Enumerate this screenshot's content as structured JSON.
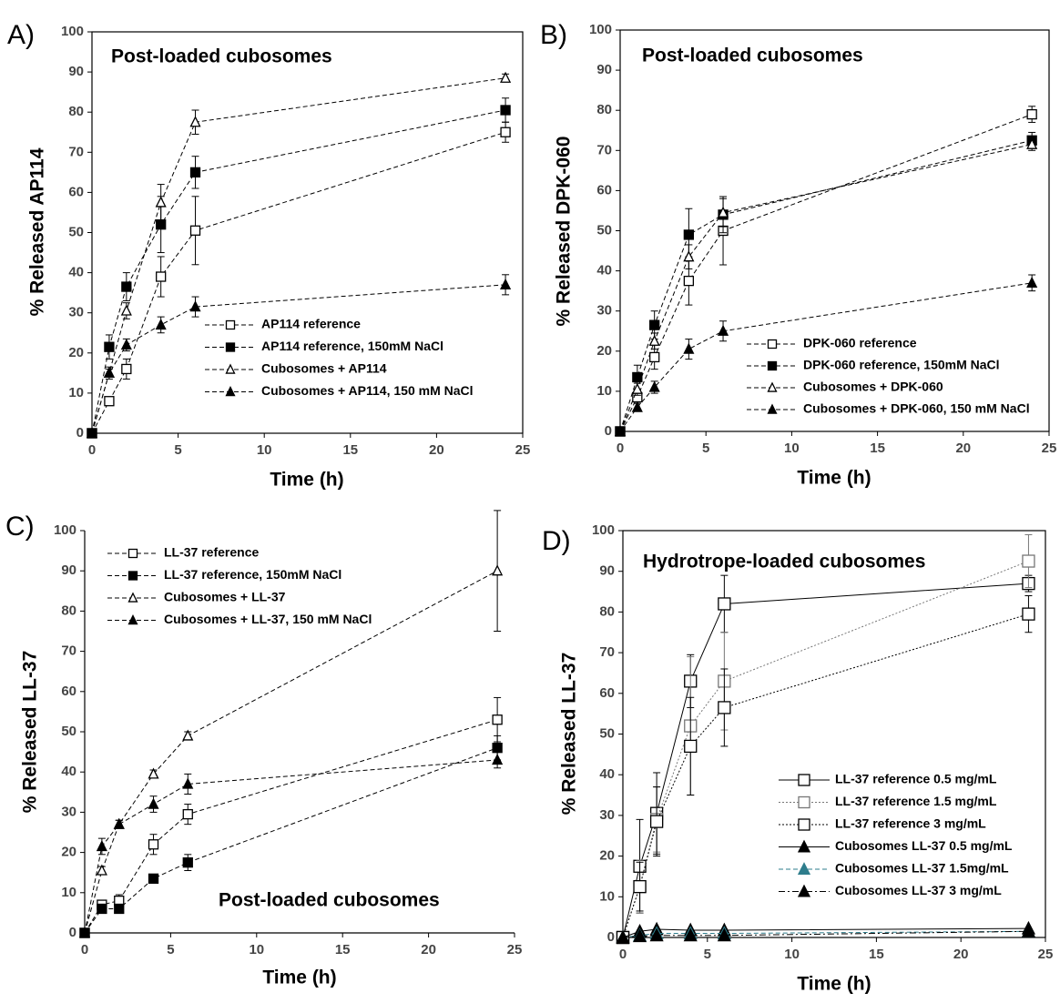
{
  "chart_data": [
    {
      "type": "line",
      "panel_label": "A)",
      "title": "Post-loaded cubosomes",
      "x_label": "Time (h)",
      "y_label": "% Released AP114",
      "xlim": [
        0,
        25
      ],
      "xticks": [
        0,
        5,
        10,
        15,
        20,
        25
      ],
      "ylim": [
        0,
        100
      ],
      "yticks": [
        0,
        10,
        20,
        30,
        40,
        50,
        60,
        70,
        80,
        90,
        100
      ],
      "grid": false,
      "x": [
        0,
        1,
        2,
        4,
        6,
        24
      ],
      "series": [
        {
          "name": "AP114 reference",
          "color": "#000000",
          "marker": "square-open",
          "line_style": "dashed",
          "values": [
            0,
            8,
            16,
            39,
            50.5,
            75
          ],
          "errors": [
            0,
            1,
            2.5,
            5,
            8.5,
            2.5
          ]
        },
        {
          "name": "AP114 reference, 150mM NaCl",
          "color": "#000000",
          "marker": "square-filled",
          "line_style": "dashed",
          "values": [
            0,
            21.5,
            36.5,
            52,
            65,
            80.5
          ],
          "errors": [
            0,
            3,
            3.5,
            7,
            4,
            3
          ]
        },
        {
          "name": "Cubosomes + AP114",
          "color": "#000000",
          "marker": "triangle-open",
          "line_style": "dashed",
          "values": [
            0,
            15,
            30.5,
            57.5,
            77.5,
            88.5
          ],
          "errors": [
            0,
            1.5,
            2,
            4.5,
            3,
            1
          ]
        },
        {
          "name": "Cubosomes + AP114, 150 mM NaCl",
          "color": "#000000",
          "marker": "triangle-filled",
          "line_style": "dashed",
          "values": [
            0,
            15,
            22,
            27,
            31.5,
            37
          ],
          "errors": [
            0,
            1,
            1.5,
            2,
            2.5,
            2.5
          ]
        }
      ]
    },
    {
      "type": "line",
      "panel_label": "B)",
      "title": "Post-loaded cubosomes",
      "x_label": "Time (h)",
      "y_label": "% Released DPK-060",
      "xlim": [
        0,
        25
      ],
      "xticks": [
        0,
        5,
        10,
        15,
        20,
        25
      ],
      "ylim": [
        0,
        100
      ],
      "yticks": [
        0,
        10,
        20,
        30,
        40,
        50,
        60,
        70,
        80,
        90,
        100
      ],
      "grid": false,
      "x": [
        0,
        1,
        2,
        4,
        6,
        24
      ],
      "series": [
        {
          "name": "DPK-060 reference",
          "color": "#000000",
          "marker": "square-open",
          "line_style": "dashed",
          "values": [
            0,
            8.5,
            18.5,
            37.5,
            50,
            79
          ],
          "errors": [
            0,
            1.5,
            3,
            6,
            8.5,
            2
          ]
        },
        {
          "name": "DPK-060 reference, 150mM NaCl",
          "color": "#000000",
          "marker": "square-filled",
          "line_style": "dashed",
          "values": [
            0,
            13.5,
            26.5,
            49,
            54,
            72.5
          ],
          "errors": [
            0,
            3,
            3.5,
            6.5,
            4.5,
            2
          ]
        },
        {
          "name": "Cubosomes + DPK-060",
          "color": "#000000",
          "marker": "triangle-open",
          "line_style": "dashed",
          "values": [
            0,
            10.5,
            22.5,
            43.5,
            54.5,
            71.5
          ],
          "errors": [
            0,
            1.5,
            2,
            3,
            3.5,
            1.5
          ]
        },
        {
          "name": "Cubosomes + DPK-060, 150 mM NaCl",
          "color": "#000000",
          "marker": "triangle-filled",
          "line_style": "dashed",
          "values": [
            0,
            6,
            11,
            20.5,
            25,
            37
          ],
          "errors": [
            0,
            1,
            1.5,
            2.5,
            2.5,
            2
          ]
        }
      ]
    },
    {
      "type": "line",
      "panel_label": "C)",
      "annotation": "Post-loaded cubosomes",
      "x_label": "Time (h)",
      "y_label": "% Released LL-37",
      "xlim": [
        0,
        25
      ],
      "xticks": [
        0,
        5,
        10,
        15,
        20,
        25
      ],
      "ylim": [
        0,
        100
      ],
      "yticks": [
        0,
        10,
        20,
        30,
        40,
        50,
        60,
        70,
        80,
        90,
        100
      ],
      "grid": false,
      "x": [
        0,
        1,
        2,
        4,
        6,
        24
      ],
      "series": [
        {
          "name": "LL-37 reference",
          "color": "#000000",
          "marker": "square-open",
          "line_style": "dashed",
          "values": [
            0,
            7,
            8,
            22,
            29.5,
            53
          ],
          "errors": [
            0,
            1,
            1.5,
            2.5,
            2.5,
            5.5
          ]
        },
        {
          "name": "LL-37 reference, 150mM NaCl",
          "color": "#000000",
          "marker": "square-filled",
          "line_style": "dashed",
          "values": [
            0,
            6,
            6,
            13.5,
            17.5,
            46
          ],
          "errors": [
            0,
            1,
            1,
            1,
            2,
            3
          ]
        },
        {
          "name": "Cubosomes + LL-37",
          "color": "#000000",
          "marker": "triangle-open",
          "line_style": "dashed",
          "values": [
            0,
            15.5,
            27,
            39.5,
            49,
            90
          ],
          "errors": [
            0,
            1,
            1,
            1,
            1,
            15
          ]
        },
        {
          "name": "Cubosomes + LL-37, 150 mM NaCl",
          "color": "#000000",
          "marker": "triangle-filled",
          "line_style": "dashed",
          "values": [
            0,
            21.5,
            27,
            32,
            37,
            43
          ],
          "errors": [
            0,
            2,
            1,
            2,
            2.5,
            2
          ]
        }
      ]
    },
    {
      "type": "line",
      "panel_label": "D)",
      "title": "Hydrotrope-loaded cubosomes",
      "x_label": "Time (h)",
      "y_label": "% Released LL-37",
      "xlim": [
        0,
        25
      ],
      "xticks": [
        0,
        5,
        10,
        15,
        20,
        25
      ],
      "ylim": [
        0,
        100
      ],
      "yticks": [
        0,
        10,
        20,
        30,
        40,
        50,
        60,
        70,
        80,
        90,
        100
      ],
      "grid": false,
      "x": [
        0,
        1,
        2,
        4,
        6,
        24
      ],
      "series": [
        {
          "name": "LL-37 reference 0.5 mg/mL",
          "color": "#000000",
          "marker": "square-open",
          "line_style": "solid",
          "values": [
            0,
            17.5,
            30.5,
            63,
            82,
            87
          ],
          "errors": [
            0,
            11.5,
            10,
            6.5,
            7,
            2
          ]
        },
        {
          "name": "LL-37 reference 1.5 mg/mL",
          "color": "#777777",
          "marker": "square-open",
          "line_style": "dotted",
          "values": [
            0,
            12.5,
            29,
            52,
            63,
            92.5
          ],
          "errors": [
            0,
            6.5,
            8,
            17,
            12,
            6.5
          ]
        },
        {
          "name": "LL-37 reference 3 mg/mL",
          "color": "#000000",
          "marker": "square-open",
          "line_style": "dotted",
          "values": [
            0,
            12.5,
            28.5,
            47,
            56.5,
            79.5
          ],
          "errors": [
            0,
            6,
            8.5,
            12,
            9.5,
            4.5
          ]
        },
        {
          "name": "Cubosomes LL-37 0.5 mg/mL",
          "color": "#000000",
          "marker": "triangle-filled",
          "line_style": "solid",
          "values": [
            0,
            1.5,
            2,
            1.8,
            1.8,
            2.2
          ]
        },
        {
          "name": "Cubosomes LL-37 1.5mg/mL",
          "color": "#2e7d8c",
          "marker": "triangle-filled",
          "line_style": "dashed",
          "values": [
            0,
            0.5,
            1,
            1,
            1,
            1.5
          ]
        },
        {
          "name": "Cubosomes LL-37 3 mg/mL",
          "color": "#000000",
          "marker": "triangle-filled",
          "line_style": "dashdot",
          "values": [
            0,
            0.3,
            0.5,
            0.5,
            0.5,
            1.5
          ]
        }
      ]
    }
  ]
}
